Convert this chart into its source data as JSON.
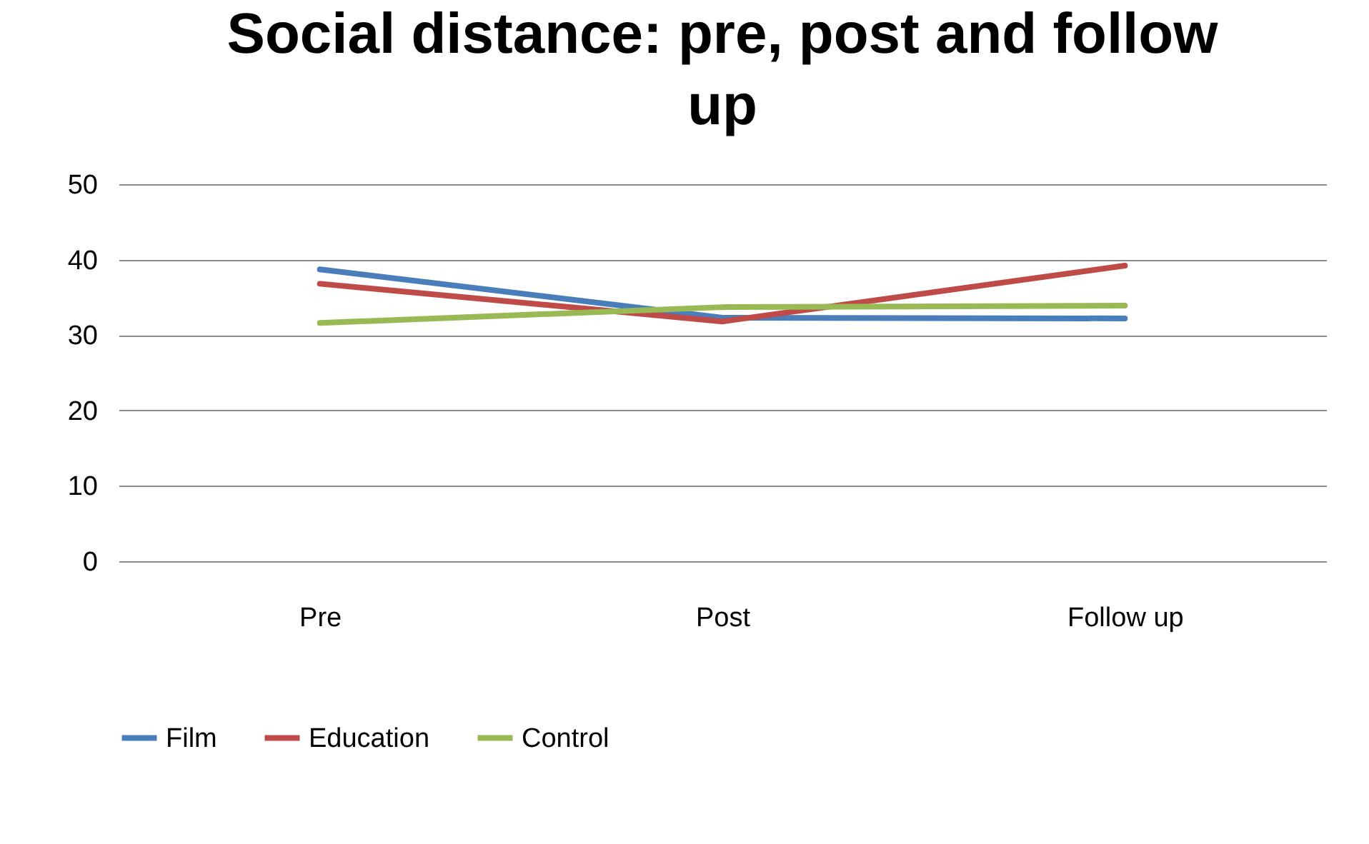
{
  "chart_data": {
    "type": "line",
    "title": "Social distance: pre, post and follow up",
    "categories": [
      "Pre",
      "Post",
      "Follow up"
    ],
    "series": [
      {
        "name": "Film",
        "color": "#4a7ebb",
        "values": [
          38.7,
          32.3,
          32.2
        ]
      },
      {
        "name": "Education",
        "color": "#be4b48",
        "values": [
          36.8,
          31.8,
          39.2
        ]
      },
      {
        "name": "Control",
        "color": "#98b954",
        "values": [
          31.6,
          33.7,
          33.9
        ]
      }
    ],
    "ylim": [
      0,
      50
    ],
    "yticks": [
      0,
      10,
      20,
      30,
      40,
      50
    ],
    "grid": "y",
    "legend": "bottom",
    "marker": "none",
    "line_style": "solid"
  }
}
